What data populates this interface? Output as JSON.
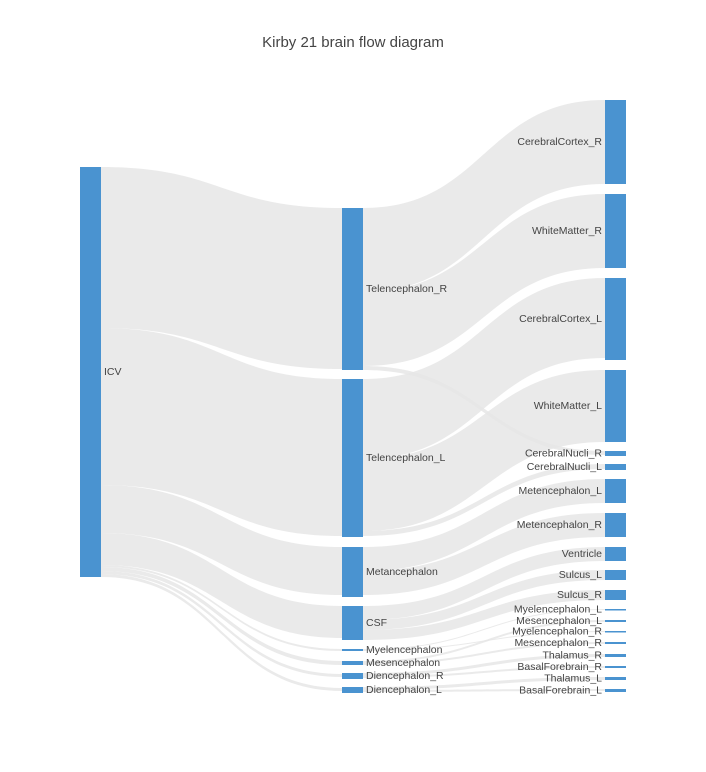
{
  "title": "Kirby 21 brain flow diagram",
  "colors": {
    "node": "#4a93d0",
    "link": "#e6e6e6",
    "text": "#444444"
  },
  "nodes": {
    "icv": "ICV",
    "tel_r": "Telencephalon_R",
    "tel_l": "Telencephalon_L",
    "metanc": "Metancephalon",
    "csf": "CSF",
    "myel": "Myelencephalon",
    "mesen": "Mesencephalon",
    "dien_r": "Diencephalon_R",
    "dien_l": "Diencephalon_L",
    "cc_r": "CerebralCortex_R",
    "wm_r": "WhiteMatter_R",
    "cc_l": "CerebralCortex_L",
    "wm_l": "WhiteMatter_L",
    "cn_r": "CerebralNucli_R",
    "cn_l": "CerebralNucli_L",
    "met_l": "Metencephalon_L",
    "met_r": "Metencephalon_R",
    "vent": "Ventricle",
    "sul_l": "Sulcus_L",
    "sul_r": "Sulcus_R",
    "myel_l": "Myelencephalon_L",
    "mes_l": "Mesencephalon_L",
    "myel_r": "Myelencephalon_R",
    "mes_r": "Mesencephalon_R",
    "thal_r": "Thalamus_R",
    "bf_r": "BasalForebrain_R",
    "thal_l": "Thalamus_L",
    "bf_l": "BasalForebrain_L"
  }
}
